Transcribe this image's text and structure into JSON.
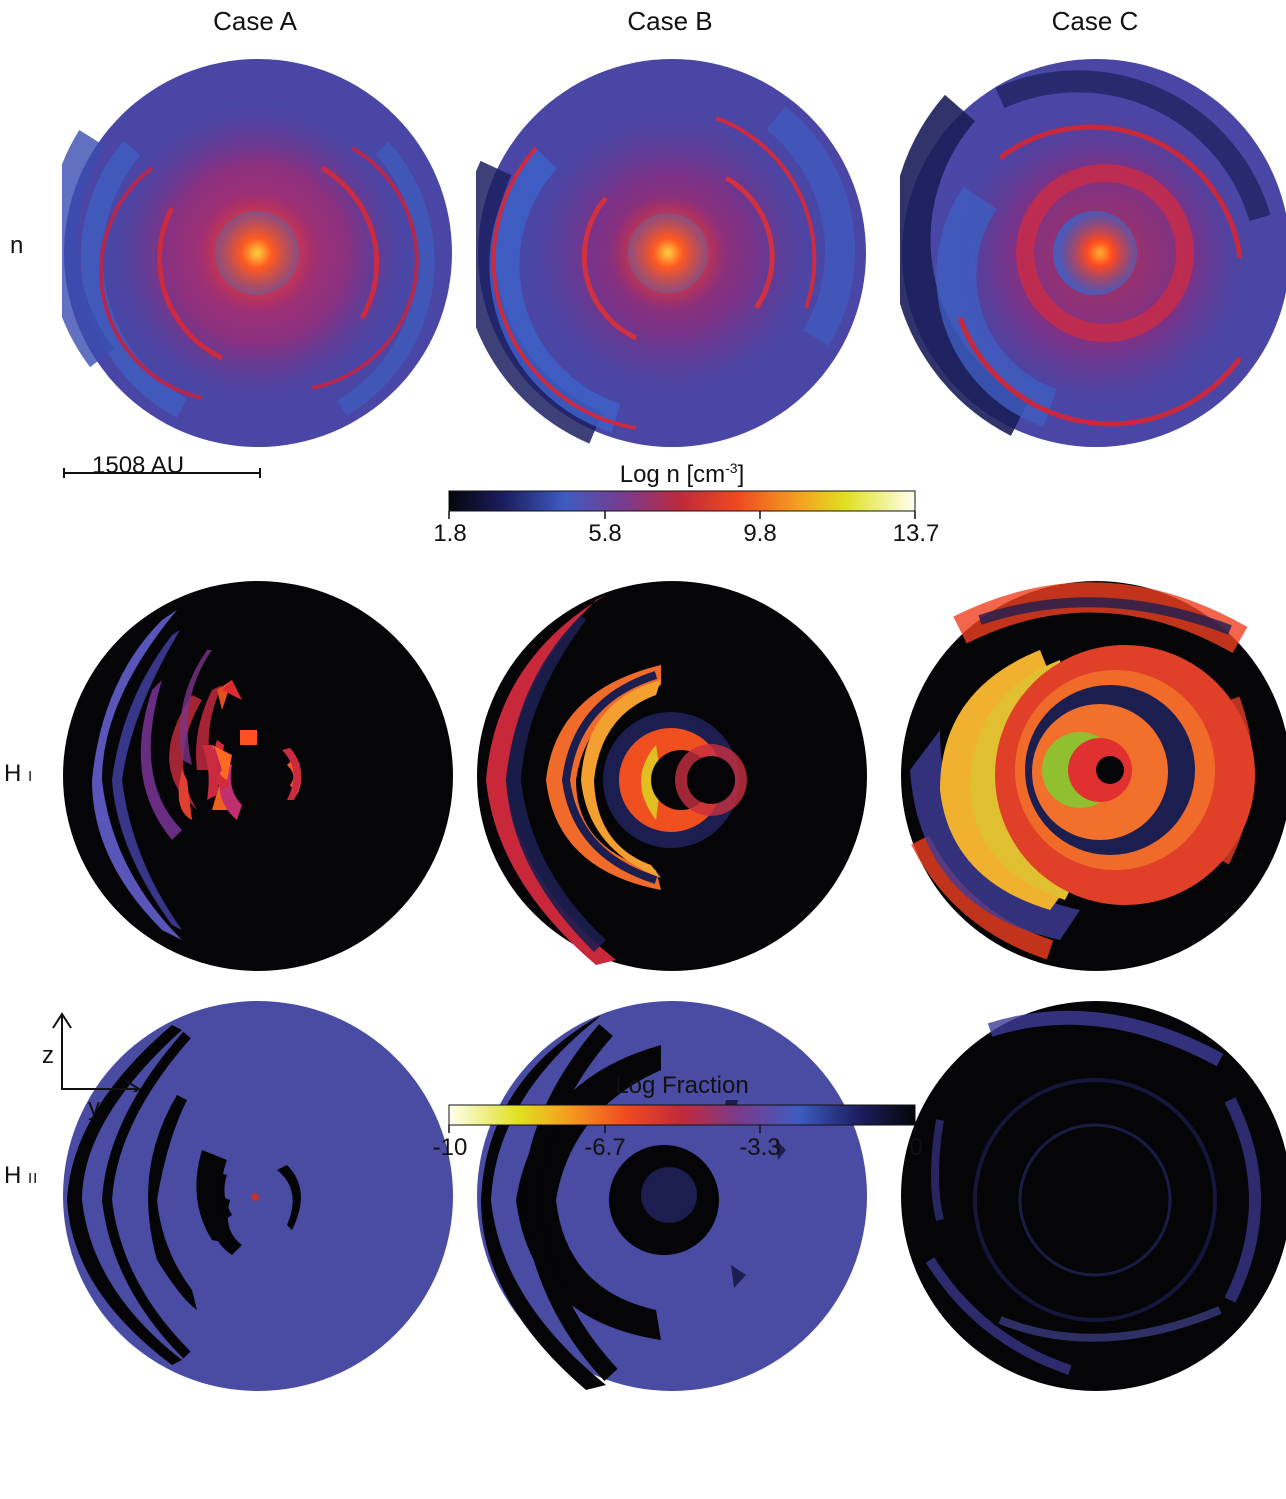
{
  "columns": [
    "Case A",
    "Case B",
    "Case C"
  ],
  "rows": {
    "n": "n",
    "h1_main": "H",
    "h1_sub": "I",
    "h2_main": "H",
    "h2_sub": "II"
  },
  "scale_bar": "1508 AU",
  "density_colorbar": {
    "title_main": "Log n [cm",
    "title_sup": "-3",
    "title_end": "]",
    "ticks": [
      "1.8",
      "5.8",
      "9.8",
      "13.7"
    ]
  },
  "fraction_colorbar": {
    "title": "Log Fraction",
    "ticks": [
      "-10",
      "-6.7",
      "-3.3",
      "0"
    ]
  },
  "axes": {
    "vertical": "z",
    "horizontal": "y"
  },
  "colors": {
    "density_background": "#4a46a6",
    "fraction_black": "#050508",
    "fraction_blue": "#4a4ba3",
    "core": "#ff3a1e"
  }
}
